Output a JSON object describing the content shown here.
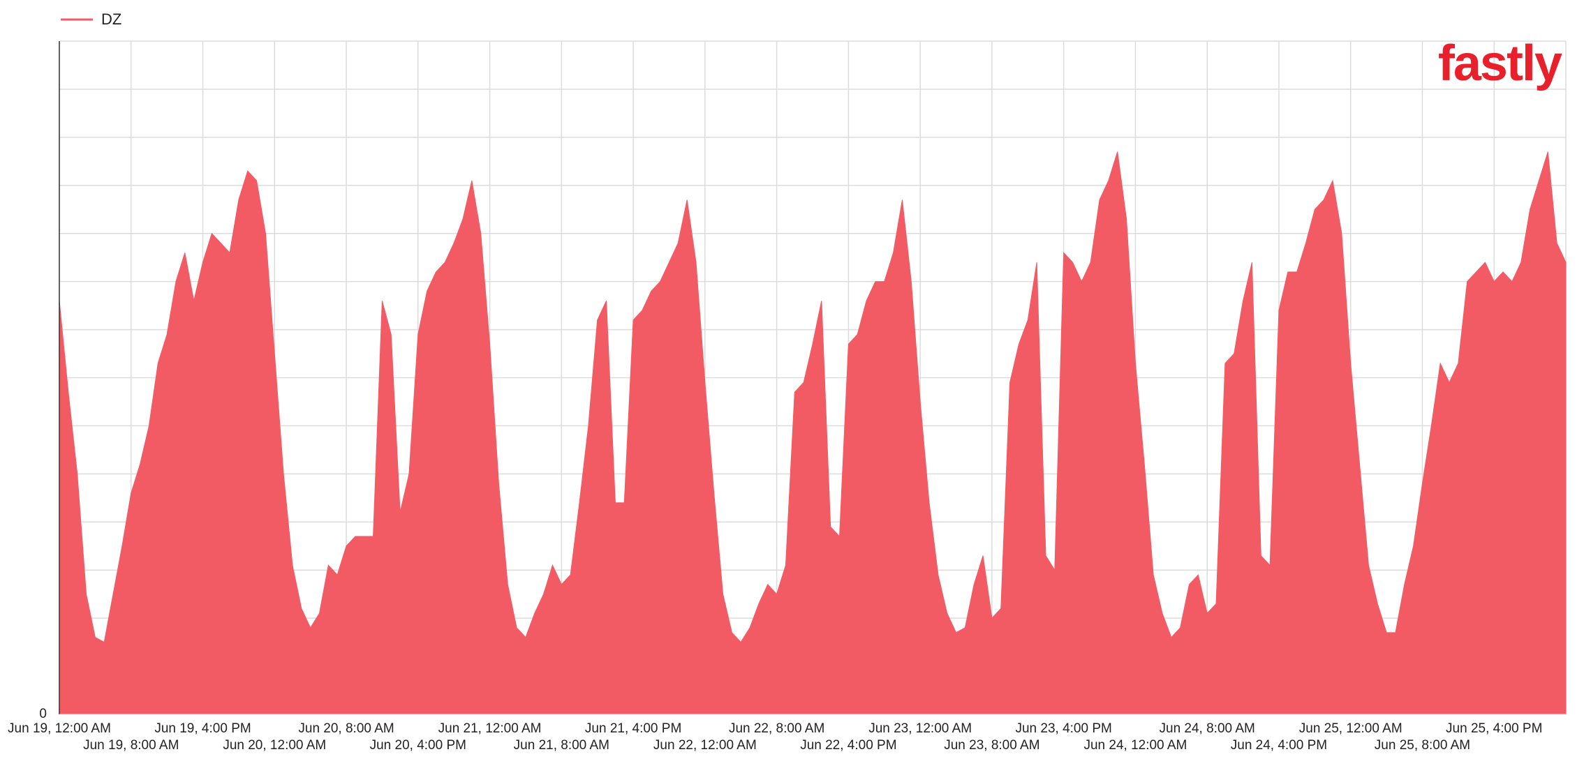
{
  "chart_data": {
    "type": "area",
    "logo": "fastly",
    "series": [
      {
        "name": "DZ",
        "color": "#f25a64",
        "values": [
          8.6,
          6.7,
          5.0,
          2.5,
          1.6,
          1.5,
          2.5,
          3.5,
          4.6,
          5.2,
          6.0,
          7.3,
          7.9,
          9.0,
          9.6,
          8.6,
          9.4,
          10.0,
          9.8,
          9.6,
          10.7,
          11.3,
          11.1,
          10.0,
          7.5,
          5.0,
          3.1,
          2.2,
          1.8,
          2.1,
          3.1,
          2.9,
          3.5,
          3.7,
          3.7,
          3.7,
          8.6,
          7.9,
          4.2,
          5.0,
          7.9,
          8.8,
          9.2,
          9.4,
          9.8,
          10.3,
          11.1,
          10.0,
          7.7,
          4.8,
          2.7,
          1.8,
          1.6,
          2.1,
          2.5,
          3.1,
          2.7,
          2.9,
          4.4,
          6.0,
          8.2,
          8.6,
          4.4,
          4.4,
          8.2,
          8.4,
          8.8,
          9.0,
          9.4,
          9.8,
          10.7,
          9.4,
          6.9,
          4.6,
          2.5,
          1.7,
          1.5,
          1.8,
          2.3,
          2.7,
          2.5,
          3.1,
          6.7,
          6.9,
          7.7,
          8.6,
          3.9,
          3.7,
          7.7,
          7.9,
          8.6,
          9.0,
          9.0,
          9.6,
          10.7,
          9.0,
          6.5,
          4.4,
          2.9,
          2.1,
          1.7,
          1.8,
          2.7,
          3.3,
          2.0,
          2.2,
          6.9,
          7.7,
          8.2,
          9.4,
          3.3,
          3.0,
          9.6,
          9.4,
          9.0,
          9.4,
          10.7,
          11.1,
          11.7,
          10.3,
          7.3,
          5.2,
          2.9,
          2.1,
          1.6,
          1.8,
          2.7,
          2.9,
          2.1,
          2.3,
          7.3,
          7.5,
          8.6,
          9.4,
          3.3,
          3.1,
          8.4,
          9.2,
          9.2,
          9.8,
          10.5,
          10.7,
          11.1,
          10.0,
          7.3,
          5.2,
          3.1,
          2.3,
          1.7,
          1.7,
          2.7,
          3.5,
          4.8,
          6.0,
          7.3,
          6.9,
          7.3,
          9.0,
          9.2,
          9.4,
          9.0,
          9.2,
          9.0,
          9.4,
          10.5,
          11.1,
          11.7,
          9.8,
          9.4
        ]
      }
    ],
    "x": [
      0,
      1,
      2,
      3,
      4,
      5,
      6,
      7,
      8,
      9,
      10,
      11,
      12,
      13,
      14,
      15,
      16,
      17,
      18,
      19,
      20,
      21,
      22,
      23,
      24,
      25,
      26,
      27,
      28,
      29,
      30,
      31,
      32,
      33,
      34,
      35,
      36,
      37,
      38,
      39,
      40,
      41,
      42,
      43,
      44,
      45,
      46,
      47,
      48,
      49,
      50,
      51,
      52,
      53,
      54,
      55,
      56,
      57,
      58,
      59,
      60,
      61,
      62,
      63,
      64,
      65,
      66,
      67,
      68,
      69,
      70,
      71,
      72,
      73,
      74,
      75,
      76,
      77,
      78,
      79,
      80,
      81,
      82,
      83,
      84,
      85,
      86,
      87,
      88,
      89,
      90,
      91,
      92,
      93,
      94,
      95,
      96,
      97,
      98,
      99,
      100,
      101,
      102,
      103,
      104,
      105,
      106,
      107,
      108,
      109,
      110,
      111,
      112,
      113,
      114,
      115,
      116,
      117,
      118,
      119,
      120,
      121,
      122,
      123,
      124,
      125,
      126,
      127,
      128,
      129,
      130,
      131,
      132,
      133,
      134,
      135,
      136,
      137,
      138,
      139,
      140,
      141,
      142,
      143,
      144,
      145,
      146,
      147,
      148,
      149,
      150,
      151,
      152,
      153,
      154,
      155,
      156,
      157,
      158,
      159,
      160,
      161,
      162,
      163,
      164,
      165,
      166,
      167,
      168
    ],
    "xlim": [
      0,
      168
    ],
    "xticks": [
      {
        "value": 0,
        "label": "Jun 19, 12:00 AM"
      },
      {
        "value": 8,
        "label": "Jun 19, 8:00 AM"
      },
      {
        "value": 16,
        "label": "Jun 19, 4:00 PM"
      },
      {
        "value": 24,
        "label": "Jun 20, 12:00 AM"
      },
      {
        "value": 32,
        "label": "Jun 20, 8:00 AM"
      },
      {
        "value": 40,
        "label": "Jun 20, 4:00 PM"
      },
      {
        "value": 48,
        "label": "Jun 21, 12:00 AM"
      },
      {
        "value": 56,
        "label": "Jun 21, 8:00 AM"
      },
      {
        "value": 64,
        "label": "Jun 21, 4:00 PM"
      },
      {
        "value": 72,
        "label": "Jun 22, 12:00 AM"
      },
      {
        "value": 80,
        "label": "Jun 22, 8:00 AM"
      },
      {
        "value": 88,
        "label": "Jun 22, 4:00 PM"
      },
      {
        "value": 96,
        "label": "Jun 23, 12:00 AM"
      },
      {
        "value": 104,
        "label": "Jun 23, 8:00 AM"
      },
      {
        "value": 112,
        "label": "Jun 23, 4:00 PM"
      },
      {
        "value": 120,
        "label": "Jun 24, 12:00 AM"
      },
      {
        "value": 128,
        "label": "Jun 24, 8:00 AM"
      },
      {
        "value": 136,
        "label": "Jun 24, 4:00 PM"
      },
      {
        "value": 144,
        "label": "Jun 25, 12:00 AM"
      },
      {
        "value": 152,
        "label": "Jun 25, 8:00 AM"
      },
      {
        "value": 160,
        "label": "Jun 25, 4:00 PM"
      }
    ],
    "ylim": [
      0,
      14
    ],
    "yticks": [
      0
    ],
    "ygrid": [
      1,
      2,
      3,
      4,
      5,
      6,
      7,
      8,
      9,
      10,
      11,
      12,
      13,
      14
    ],
    "grid": true,
    "legend": "top-left"
  }
}
